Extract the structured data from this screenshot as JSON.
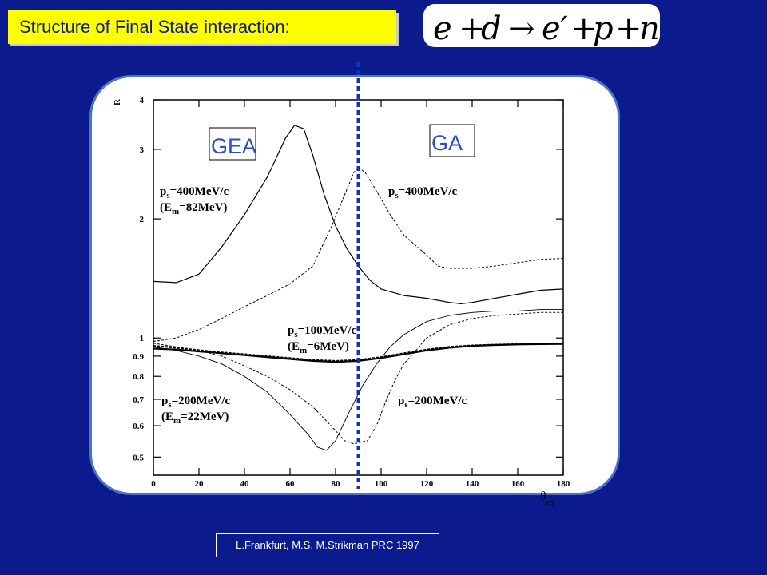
{
  "header": {
    "title": "Structure of Final State interaction:",
    "reaction": {
      "lhs": [
        "e",
        "+",
        "d"
      ],
      "arrow": "→",
      "rhs": [
        "e′",
        "+",
        "p",
        "+",
        "n"
      ]
    }
  },
  "credit": "L.Frankfurt, M.S. M.Strikman PRC  1997",
  "colors": {
    "background": "#0b1a8c",
    "title_box": "#ffff00",
    "panel_border": "#4e73c4",
    "divider": "#1030c8"
  },
  "chart_data": {
    "type": "line",
    "title": "",
    "xlabel": "θ",
    "xlabel_sub": "rn",
    "ylabel": "R",
    "y_scale": "log",
    "xlim": [
      0,
      180
    ],
    "ylim": [
      0.45,
      4
    ],
    "x_ticks": [
      "0",
      "20",
      "40",
      "60",
      "80",
      "100",
      "120",
      "140",
      "160",
      "180"
    ],
    "y_ticks": [
      {
        "value": 0.5,
        "label": "0.5"
      },
      {
        "value": 0.6,
        "label": "0.6"
      },
      {
        "value": 0.7,
        "label": "0.7"
      },
      {
        "value": 0.8,
        "label": "0.8"
      },
      {
        "value": 0.9,
        "label": "0.9"
      },
      {
        "value": 1,
        "label": "1"
      },
      {
        "value": 2,
        "label": "2"
      },
      {
        "value": 3,
        "label": "3"
      },
      {
        "value": 4,
        "label": "4"
      }
    ],
    "divider_x": 90,
    "regions": {
      "left": "GEA",
      "right": "GA"
    },
    "annotations": [
      {
        "id": "gea400",
        "lines": [
          "p_s=400MeV/c",
          "(E_m=82MeV)"
        ]
      },
      {
        "id": "ga400",
        "lines": [
          "p_s=400MeV/c"
        ]
      },
      {
        "id": "mid100",
        "lines": [
          "p_s=100MeV/c",
          "(E_m=6MeV)"
        ]
      },
      {
        "id": "gea200",
        "lines": [
          "p_s=200MeV/c",
          "(E_m=22MeV)"
        ]
      },
      {
        "id": "ga200",
        "lines": [
          "p_s=200MeV/c"
        ]
      }
    ],
    "series": [
      {
        "style": "solid",
        "width": 1.2,
        "points": [
          [
            0,
            1.39
          ],
          [
            10,
            1.38
          ],
          [
            20,
            1.45
          ],
          [
            30,
            1.7
          ],
          [
            40,
            2.05
          ],
          [
            50,
            2.55
          ],
          [
            58,
            3.2
          ],
          [
            62,
            3.45
          ],
          [
            66,
            3.38
          ],
          [
            70,
            2.9
          ],
          [
            75,
            2.3
          ],
          [
            80,
            1.92
          ],
          [
            85,
            1.68
          ],
          [
            90,
            1.52
          ],
          [
            95,
            1.4
          ],
          [
            100,
            1.33
          ],
          [
            110,
            1.28
          ],
          [
            120,
            1.26
          ],
          [
            130,
            1.23
          ],
          [
            135,
            1.22
          ],
          [
            140,
            1.23
          ],
          [
            150,
            1.26
          ],
          [
            160,
            1.29
          ],
          [
            170,
            1.32
          ],
          [
            180,
            1.33
          ]
        ]
      },
      {
        "style": "dashed",
        "width": 1.0,
        "points": [
          [
            0,
            0.98
          ],
          [
            10,
            1.0
          ],
          [
            20,
            1.05
          ],
          [
            30,
            1.12
          ],
          [
            40,
            1.2
          ],
          [
            50,
            1.28
          ],
          [
            60,
            1.37
          ],
          [
            70,
            1.52
          ],
          [
            78,
            1.9
          ],
          [
            84,
            2.3
          ],
          [
            88,
            2.62
          ],
          [
            90,
            2.7
          ],
          [
            93,
            2.62
          ],
          [
            98,
            2.35
          ],
          [
            104,
            2.05
          ],
          [
            110,
            1.82
          ],
          [
            120,
            1.62
          ],
          [
            125,
            1.52
          ],
          [
            130,
            1.5
          ],
          [
            140,
            1.5
          ],
          [
            150,
            1.52
          ],
          [
            160,
            1.55
          ],
          [
            170,
            1.58
          ],
          [
            180,
            1.59
          ]
        ]
      },
      {
        "style": "solid",
        "width": 0.9,
        "points": [
          [
            0,
            0.95
          ],
          [
            10,
            0.93
          ],
          [
            20,
            0.9
          ],
          [
            30,
            0.86
          ],
          [
            40,
            0.8
          ],
          [
            50,
            0.73
          ],
          [
            60,
            0.64
          ],
          [
            68,
            0.57
          ],
          [
            72,
            0.53
          ],
          [
            76,
            0.52
          ],
          [
            80,
            0.55
          ],
          [
            86,
            0.65
          ],
          [
            92,
            0.76
          ],
          [
            98,
            0.86
          ],
          [
            104,
            0.95
          ],
          [
            110,
            1.02
          ],
          [
            120,
            1.1
          ],
          [
            130,
            1.14
          ],
          [
            140,
            1.16
          ],
          [
            150,
            1.17
          ],
          [
            160,
            1.17
          ],
          [
            170,
            1.18
          ],
          [
            180,
            1.18
          ]
        ]
      },
      {
        "style": "dashed",
        "width": 1.0,
        "points": [
          [
            0,
            0.97
          ],
          [
            10,
            0.95
          ],
          [
            20,
            0.93
          ],
          [
            30,
            0.9
          ],
          [
            40,
            0.85
          ],
          [
            50,
            0.8
          ],
          [
            60,
            0.74
          ],
          [
            70,
            0.67
          ],
          [
            78,
            0.6
          ],
          [
            84,
            0.55
          ],
          [
            88,
            0.54
          ],
          [
            94,
            0.55
          ],
          [
            98,
            0.6
          ],
          [
            102,
            0.69
          ],
          [
            106,
            0.78
          ],
          [
            110,
            0.86
          ],
          [
            116,
            0.94
          ],
          [
            120,
            1.0
          ],
          [
            130,
            1.08
          ],
          [
            140,
            1.12
          ],
          [
            150,
            1.14
          ],
          [
            160,
            1.15
          ],
          [
            170,
            1.16
          ],
          [
            180,
            1.16
          ]
        ]
      },
      {
        "style": "solid",
        "width": 2.2,
        "points": [
          [
            0,
            0.94
          ],
          [
            10,
            0.935
          ],
          [
            20,
            0.925
          ],
          [
            30,
            0.915
          ],
          [
            40,
            0.905
          ],
          [
            50,
            0.895
          ],
          [
            60,
            0.885
          ],
          [
            70,
            0.875
          ],
          [
            80,
            0.87
          ],
          [
            90,
            0.875
          ],
          [
            100,
            0.89
          ],
          [
            110,
            0.91
          ],
          [
            120,
            0.93
          ],
          [
            130,
            0.945
          ],
          [
            140,
            0.955
          ],
          [
            150,
            0.96
          ],
          [
            160,
            0.963
          ],
          [
            170,
            0.965
          ],
          [
            180,
            0.966
          ]
        ]
      },
      {
        "style": "dashed",
        "width": 2.0,
        "points": [
          [
            0,
            0.955
          ],
          [
            10,
            0.945
          ],
          [
            20,
            0.932
          ],
          [
            30,
            0.92
          ],
          [
            40,
            0.91
          ],
          [
            50,
            0.9
          ],
          [
            60,
            0.89
          ],
          [
            70,
            0.88
          ],
          [
            80,
            0.875
          ],
          [
            90,
            0.88
          ],
          [
            100,
            0.895
          ],
          [
            110,
            0.915
          ],
          [
            120,
            0.935
          ],
          [
            130,
            0.95
          ],
          [
            140,
            0.958
          ],
          [
            150,
            0.962
          ],
          [
            160,
            0.965
          ],
          [
            170,
            0.967
          ],
          [
            180,
            0.968
          ]
        ]
      }
    ]
  }
}
